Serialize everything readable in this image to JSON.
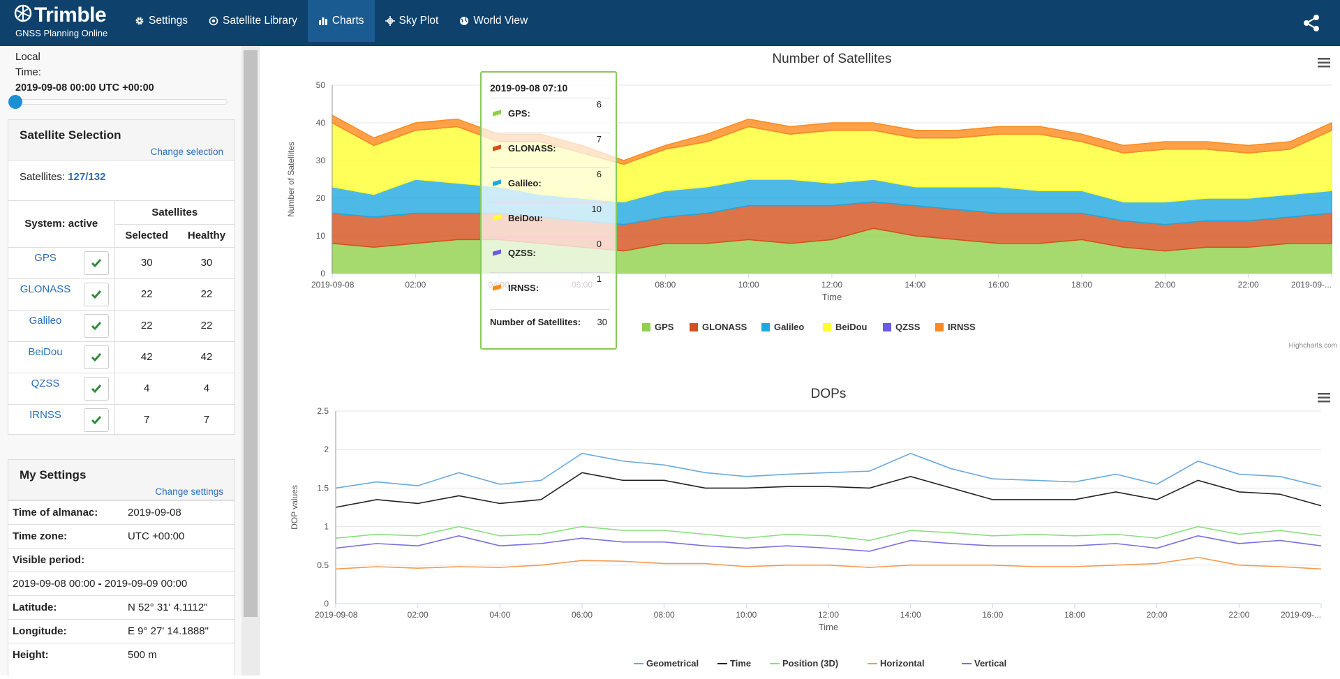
{
  "brand": {
    "name": "Trimble",
    "subtitle": "GNSS Planning Online"
  },
  "nav": [
    {
      "label": "Settings",
      "icon": "gear-icon"
    },
    {
      "label": "Satellite Library",
      "icon": "satellite-icon"
    },
    {
      "label": "Charts",
      "icon": "bar-chart-icon",
      "active": true
    },
    {
      "label": "Sky Plot",
      "icon": "crosshair-icon"
    },
    {
      "label": "World View",
      "icon": "globe-icon"
    }
  ],
  "sidebar": {
    "time_label_1": "Local",
    "time_label_2": "Time:",
    "time_value": "2019-09-08 00:00 UTC +00:00",
    "selection": {
      "title": "Satellite Selection",
      "change_link": "Change selection",
      "count_label": "Satellites: ",
      "count_selected": "127",
      "count_sep": "/",
      "count_total": "132",
      "col_system": "System: active",
      "col_satellites": "Satellites",
      "col_selected": "Selected",
      "col_healthy": "Healthy",
      "rows": [
        {
          "name": "GPS",
          "selected": "30",
          "healthy": "30"
        },
        {
          "name": "GLONASS",
          "selected": "22",
          "healthy": "22"
        },
        {
          "name": "Galileo",
          "selected": "22",
          "healthy": "22"
        },
        {
          "name": "BeiDou",
          "selected": "42",
          "healthy": "42"
        },
        {
          "name": "QZSS",
          "selected": "4",
          "healthy": "4"
        },
        {
          "name": "IRNSS",
          "selected": "7",
          "healthy": "7"
        }
      ]
    },
    "settings": {
      "title": "My Settings",
      "change_link": "Change settings",
      "almanac_label": "Time of almanac:",
      "almanac_value": "2019-09-08",
      "tz_label": "Time zone:",
      "tz_value": "UTC +00:00",
      "period_label": "Visible period:",
      "period_start": "2019-09-08 00:00",
      "period_sep": " - ",
      "period_end": "2019-09-09 00:00",
      "lat_label": "Latitude:",
      "lat_value": "N 52° 31' 4.1112\"",
      "lon_label": "Longitude:",
      "lon_value": "E 9° 27' 14.1888\"",
      "height_label": "Height:",
      "height_value": "500 m"
    }
  },
  "tooltip": {
    "time": "2019-09-08 07:10",
    "rows": [
      {
        "name": "GPS:",
        "value": "6"
      },
      {
        "name": "GLONASS:",
        "value": "7"
      },
      {
        "name": "Galileo:",
        "value": "6"
      },
      {
        "name": "BeiDou:",
        "value": "10"
      },
      {
        "name": "QZSS:",
        "value": "0"
      },
      {
        "name": "IRNSS:",
        "value": "1"
      }
    ],
    "total_label": "Number of Satellites:",
    "total_value": "30"
  },
  "credit": "Highcharts.com",
  "chart_data": [
    {
      "type": "area",
      "stacked": true,
      "title": "Number of Satellites",
      "xlabel": "Time",
      "ylabel": "Number of Satellites",
      "ylim": [
        0,
        50
      ],
      "yticks": [
        "0",
        "10",
        "20",
        "30",
        "40",
        "50"
      ],
      "xticks": [
        "2019-09-08",
        "02:00",
        "04:00",
        "06:00",
        "08:00",
        "10:00",
        "12:00",
        "14:00",
        "16:00",
        "18:00",
        "20:00",
        "22:00",
        "2019-09-..."
      ],
      "x": [
        "00:00",
        "01:00",
        "02:00",
        "03:00",
        "04:00",
        "05:00",
        "06:00",
        "07:00",
        "08:00",
        "09:00",
        "10:00",
        "11:00",
        "12:00",
        "13:00",
        "14:00",
        "15:00",
        "16:00",
        "17:00",
        "18:00",
        "19:00",
        "20:00",
        "21:00",
        "22:00",
        "23:00",
        "24:00"
      ],
      "series": [
        {
          "name": "GPS",
          "color": "#90d04a",
          "values": [
            8,
            7,
            8,
            9,
            9,
            8,
            7,
            6,
            8,
            8,
            9,
            8,
            9,
            12,
            10,
            9,
            8,
            8,
            9,
            7,
            6,
            7,
            7,
            8,
            8
          ]
        },
        {
          "name": "GLONASS",
          "color": "#d4501c",
          "values": [
            8,
            8,
            8,
            7,
            7,
            7,
            7,
            7,
            7,
            8,
            9,
            10,
            9,
            7,
            8,
            8,
            8,
            8,
            7,
            7,
            7,
            7,
            7,
            7,
            8
          ]
        },
        {
          "name": "Galileo",
          "color": "#20a8e0",
          "values": [
            7,
            6,
            9,
            8,
            7,
            6,
            6,
            6,
            7,
            7,
            7,
            7,
            6,
            6,
            5,
            6,
            7,
            6,
            6,
            5,
            6,
            6,
            6,
            6,
            6
          ]
        },
        {
          "name": "BeiDou",
          "color": "#ffff30",
          "values": [
            17,
            13,
            13,
            15,
            12,
            14,
            12,
            10,
            11,
            12,
            14,
            12,
            14,
            13,
            13,
            13,
            14,
            15,
            13,
            13,
            14,
            13,
            12,
            12,
            16
          ]
        },
        {
          "name": "QZSS",
          "color": "#6a5ae8",
          "values": [
            0,
            0,
            0,
            0,
            0,
            0,
            0,
            0,
            0,
            0,
            0,
            0,
            0,
            0,
            0,
            0,
            0,
            0,
            0,
            0,
            0,
            0,
            0,
            0,
            0
          ]
        },
        {
          "name": "IRNSS",
          "color": "#ff8a1c",
          "values": [
            2,
            2,
            2,
            2,
            2,
            2,
            2,
            1,
            1,
            2,
            2,
            2,
            2,
            2,
            2,
            2,
            2,
            2,
            2,
            2,
            2,
            2,
            2,
            2,
            2
          ]
        }
      ]
    },
    {
      "type": "line",
      "title": "DOPs",
      "xlabel": "Time",
      "ylabel": "DOP values",
      "ylim": [
        0,
        2.5
      ],
      "yticks": [
        "0",
        "0.5",
        "1",
        "1.5",
        "2",
        "2.5"
      ],
      "xticks": [
        "2019-09-08",
        "02:00",
        "04:00",
        "06:00",
        "08:00",
        "10:00",
        "12:00",
        "14:00",
        "16:00",
        "18:00",
        "20:00",
        "22:00",
        "2019-09-..."
      ],
      "x": [
        "00:00",
        "01:00",
        "02:00",
        "03:00",
        "04:00",
        "05:00",
        "06:00",
        "07:00",
        "08:00",
        "09:00",
        "10:00",
        "11:00",
        "12:00",
        "13:00",
        "14:00",
        "15:00",
        "16:00",
        "17:00",
        "18:00",
        "19:00",
        "20:00",
        "21:00",
        "22:00",
        "23:00",
        "24:00"
      ],
      "series": [
        {
          "name": "Geometrical",
          "color": "#6aa9dd",
          "values": [
            1.5,
            1.58,
            1.53,
            1.7,
            1.55,
            1.6,
            1.95,
            1.85,
            1.8,
            1.7,
            1.65,
            1.68,
            1.7,
            1.72,
            1.95,
            1.75,
            1.62,
            1.6,
            1.58,
            1.68,
            1.55,
            1.85,
            1.68,
            1.65,
            1.52
          ]
        },
        {
          "name": "Time",
          "color": "#222222",
          "values": [
            1.25,
            1.35,
            1.3,
            1.4,
            1.3,
            1.35,
            1.7,
            1.6,
            1.6,
            1.5,
            1.5,
            1.52,
            1.52,
            1.5,
            1.65,
            1.5,
            1.35,
            1.35,
            1.35,
            1.45,
            1.35,
            1.6,
            1.45,
            1.42,
            1.27
          ]
        },
        {
          "name": "Position (3D)",
          "color": "#87e07a",
          "values": [
            0.85,
            0.9,
            0.88,
            1.0,
            0.88,
            0.9,
            1.0,
            0.95,
            0.95,
            0.9,
            0.85,
            0.9,
            0.88,
            0.82,
            0.95,
            0.92,
            0.88,
            0.9,
            0.88,
            0.9,
            0.85,
            1.0,
            0.9,
            0.95,
            0.88
          ]
        },
        {
          "name": "Horizontal",
          "color": "#f49a52",
          "values": [
            0.45,
            0.48,
            0.46,
            0.48,
            0.47,
            0.5,
            0.56,
            0.55,
            0.52,
            0.52,
            0.48,
            0.5,
            0.5,
            0.47,
            0.5,
            0.5,
            0.5,
            0.48,
            0.48,
            0.5,
            0.52,
            0.6,
            0.5,
            0.48,
            0.45
          ]
        },
        {
          "name": "Vertical",
          "color": "#7a6fe0",
          "values": [
            0.72,
            0.78,
            0.75,
            0.88,
            0.75,
            0.78,
            0.85,
            0.8,
            0.8,
            0.75,
            0.72,
            0.75,
            0.72,
            0.68,
            0.82,
            0.78,
            0.75,
            0.75,
            0.75,
            0.78,
            0.72,
            0.88,
            0.78,
            0.82,
            0.75
          ]
        }
      ]
    }
  ]
}
